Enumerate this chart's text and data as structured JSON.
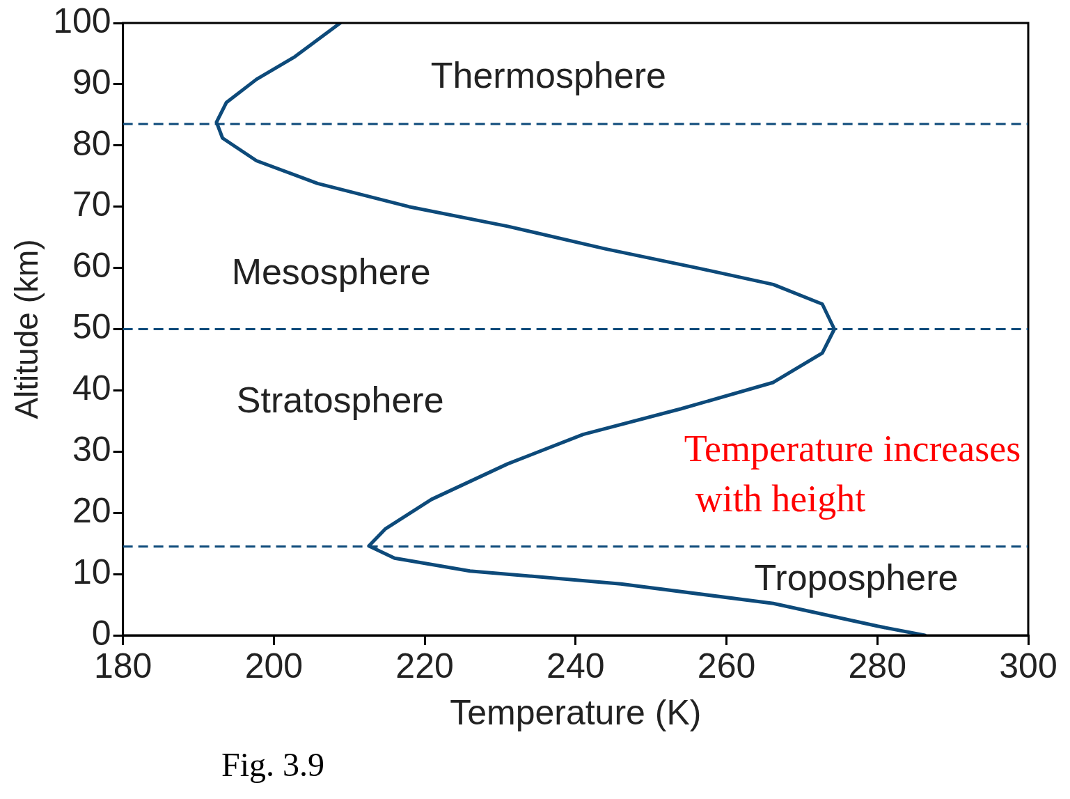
{
  "chart_data": {
    "type": "line",
    "xlabel": "Temperature (K)",
    "ylabel": "Altitude (km)",
    "xlim": [
      180,
      300
    ],
    "xticks": [
      180,
      200,
      220,
      240,
      260,
      280,
      300
    ],
    "ylim": [
      0,
      100
    ],
    "yticks": [
      0,
      10,
      20,
      30,
      40,
      50,
      60,
      70,
      80,
      90,
      100
    ],
    "grid": false,
    "legend": false,
    "marker": "none",
    "line_style": "solid",
    "series": [
      {
        "color": "#0d4a7a",
        "x": [
          286.3,
          280,
          266.2,
          246,
          226,
          216,
          212.6,
          214.8,
          220.9,
          231,
          241,
          254,
          266.2,
          272.7,
          274.3,
          272.7,
          266.2,
          256.1,
          244,
          231,
          217.9,
          205.8,
          197.7,
          193.2,
          192.4,
          193.7,
          197.7,
          202.8,
          208.8
        ],
        "values": [
          0,
          1.5,
          5.2,
          8.4,
          10.5,
          12.6,
          14.6,
          17.4,
          22.2,
          28,
          32.8,
          37,
          41.3,
          46.1,
          50,
          54.1,
          57.3,
          60,
          63.1,
          66.8,
          70,
          73.8,
          77.5,
          81.2,
          83.8,
          87,
          90.8,
          94.5,
          100
        ]
      }
    ],
    "ref_lines": [
      {
        "axis": "y",
        "value": 83.5,
        "color": "#0d4a7a",
        "line_style": "dashed"
      },
      {
        "axis": "y",
        "value": 50,
        "color": "#0d4a7a",
        "line_style": "dashed"
      },
      {
        "axis": "y",
        "value": 14.5,
        "color": "#0d4a7a",
        "line_style": "dashed"
      }
    ],
    "annotations": [
      "Thermosphere",
      "Mesosphere",
      "Stratosphere",
      "Troposphere",
      "Temperature increases\nwith height",
      "Fig. 3.9"
    ]
  }
}
